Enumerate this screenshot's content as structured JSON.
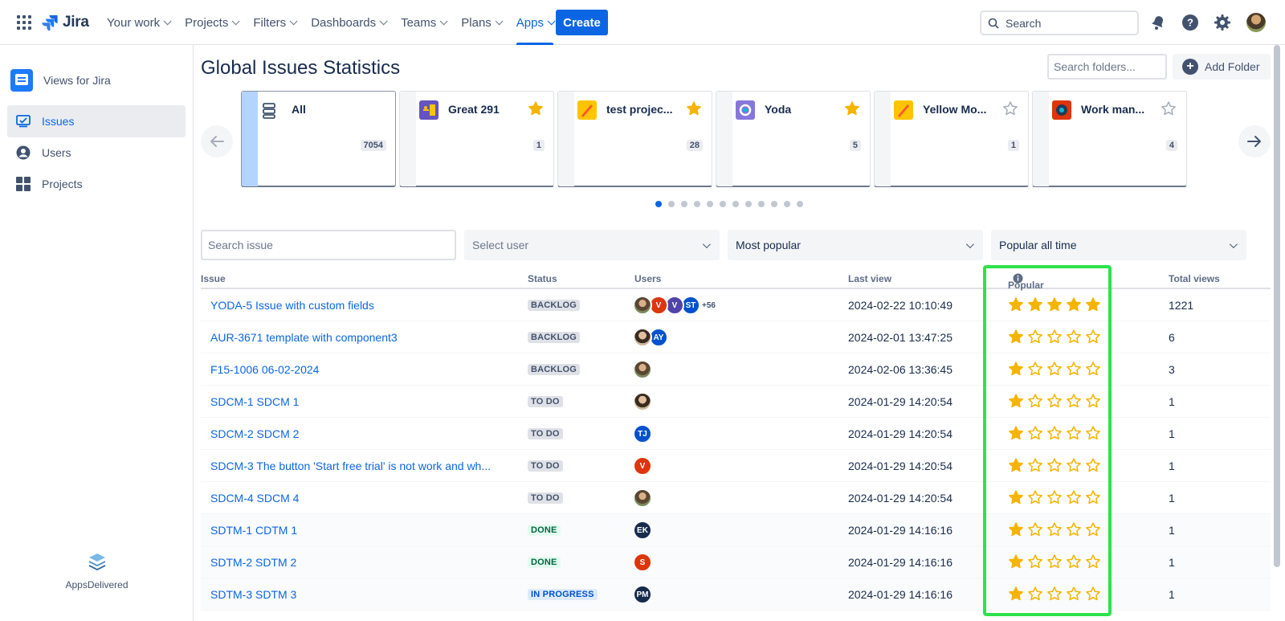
{
  "nav": {
    "logo_text": "Jira",
    "items": [
      {
        "label": "Your work",
        "active": false
      },
      {
        "label": "Projects",
        "active": false
      },
      {
        "label": "Filters",
        "active": false
      },
      {
        "label": "Dashboards",
        "active": false
      },
      {
        "label": "Teams",
        "active": false
      },
      {
        "label": "Plans",
        "active": false
      },
      {
        "label": "Apps",
        "active": true
      }
    ],
    "create_label": "Create",
    "search_placeholder": "Search"
  },
  "sidebar": {
    "app_name": "Views for Jira",
    "items": [
      {
        "label": "Issues",
        "active": true,
        "icon": "issues-icon"
      },
      {
        "label": "Users",
        "active": false,
        "icon": "user-icon"
      },
      {
        "label": "Projects",
        "active": false,
        "icon": "projects-icon"
      }
    ],
    "brand": "AppsDelivered"
  },
  "main": {
    "title": "Global Issues Statistics",
    "folder_search_placeholder": "Search folders...",
    "add_folder_label": "Add Folder"
  },
  "projects": [
    {
      "name": "All",
      "count": "7054",
      "starred": null,
      "active": true,
      "icon_color": "#ffffff"
    },
    {
      "name": "Great 291",
      "count": "1",
      "starred": true,
      "active": false,
      "icon_color": "#6554c0"
    },
    {
      "name": "test projec...",
      "count": "28",
      "starred": true,
      "active": false,
      "icon_color": "#ffc400"
    },
    {
      "name": "Yoda",
      "count": "5",
      "starred": true,
      "active": false,
      "icon_color": "#8777d9"
    },
    {
      "name": "Yellow Mo...",
      "count": "1",
      "starred": false,
      "active": false,
      "icon_color": "#ffc400"
    },
    {
      "name": "Work man...",
      "count": "4",
      "starred": false,
      "active": false,
      "icon_color": "#de350b"
    }
  ],
  "carousel": {
    "pages": 12,
    "current": 1
  },
  "filters": {
    "search_placeholder": "Search issue",
    "user_placeholder": "Select user",
    "sort_value": "Most popular",
    "period_value": "Popular all time"
  },
  "table": {
    "headers": {
      "issue": "Issue",
      "status": "Status",
      "users": "Users",
      "last_view": "Last view",
      "popular": "Popular",
      "total_views": "Total views"
    },
    "rows": [
      {
        "issue": "YODA-5 Issue with custom fields",
        "status": "BACKLOG",
        "status_type": "grey",
        "users": [
          {
            "initials": "",
            "color": "#7a8a5a",
            "photo": true
          },
          {
            "initials": "V",
            "color": "#de350b"
          },
          {
            "initials": "V",
            "color": "#5243aa"
          },
          {
            "initials": "ST",
            "color": "#0052cc"
          }
        ],
        "more": "+56",
        "last_view": "2024-02-22 10:10:49",
        "rating": 5,
        "views": "1221"
      },
      {
        "issue": "AUR-3671 template with component3",
        "status": "BACKLOG",
        "status_type": "grey",
        "users": [
          {
            "initials": "",
            "color": "#7a6a5a",
            "photo": true
          },
          {
            "initials": "AY",
            "color": "#0052cc"
          }
        ],
        "more": "",
        "last_view": "2024-02-01 13:47:25",
        "rating": 1,
        "views": "6"
      },
      {
        "issue": "F15-1006 06-02-2024",
        "status": "BACKLOG",
        "status_type": "grey",
        "users": [
          {
            "initials": "",
            "color": "#7a8a5a",
            "photo": true
          }
        ],
        "more": "",
        "last_view": "2024-02-06 13:36:45",
        "rating": 1,
        "views": "3"
      },
      {
        "issue": "SDCM-1 SDCM 1",
        "status": "TO DO",
        "status_type": "grey",
        "users": [
          {
            "initials": "",
            "color": "#b08a6a",
            "photo": true
          }
        ],
        "more": "",
        "last_view": "2024-01-29 14:20:54",
        "rating": 1,
        "views": "1"
      },
      {
        "issue": "SDCM-2 SDCM 2",
        "status": "TO DO",
        "status_type": "grey",
        "users": [
          {
            "initials": "TJ",
            "color": "#0052cc"
          }
        ],
        "more": "",
        "last_view": "2024-01-29 14:20:54",
        "rating": 1,
        "views": "1"
      },
      {
        "issue": "SDCM-3 The button 'Start free trial' is not work and wh...",
        "status": "TO DO",
        "status_type": "grey",
        "users": [
          {
            "initials": "V",
            "color": "#de350b"
          }
        ],
        "more": "",
        "last_view": "2024-01-29 14:20:54",
        "rating": 1,
        "views": "1"
      },
      {
        "issue": "SDCM-4 SDCM 4",
        "status": "TO DO",
        "status_type": "grey",
        "users": [
          {
            "initials": "",
            "color": "#8a7a6a",
            "photo": true
          }
        ],
        "more": "",
        "last_view": "2024-01-29 14:20:54",
        "rating": 1,
        "views": "1"
      },
      {
        "issue": "SDTM-1 CDTM 1",
        "status": "DONE",
        "status_type": "green",
        "users": [
          {
            "initials": "EK",
            "color": "#172b4d"
          }
        ],
        "more": "",
        "last_view": "2024-01-29 14:16:16",
        "rating": 1,
        "views": "1"
      },
      {
        "issue": "SDTM-2 SDTM 2",
        "status": "DONE",
        "status_type": "green",
        "users": [
          {
            "initials": "S",
            "color": "#de350b"
          }
        ],
        "more": "",
        "last_view": "2024-01-29 14:16:16",
        "rating": 1,
        "views": "1"
      },
      {
        "issue": "SDTM-3 SDTM 3",
        "status": "IN PROGRESS",
        "status_type": "blue",
        "users": [
          {
            "initials": "PM",
            "color": "#172b4d"
          }
        ],
        "more": "",
        "last_view": "2024-01-29 14:16:16",
        "rating": 1,
        "views": "1"
      }
    ]
  },
  "colors": {
    "accent": "#0c66e4",
    "star": "#f5b400",
    "highlight": "#2ee24a"
  }
}
